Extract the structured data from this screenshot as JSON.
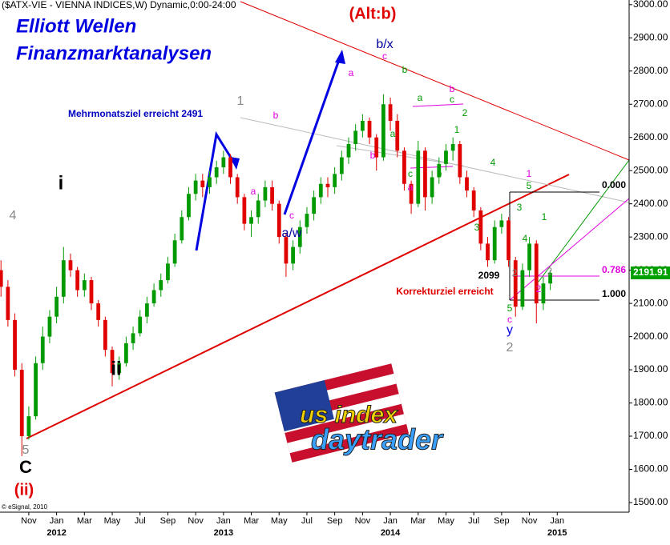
{
  "chart_data": {
    "type": "candlestick",
    "title": "($ATX-VIE - VIENNA INDICES,W) Dynamic,0:00-24:00",
    "credit": "© eSignal, 2010",
    "up_color": "#009a00",
    "down_color": "#e00000",
    "x": [
      -2,
      -1.5,
      -1,
      -0.5,
      0,
      0.5,
      1,
      1.5,
      2,
      2.5,
      3,
      3.5,
      4,
      4.5,
      5,
      5.5,
      6,
      6.5,
      7,
      7.5,
      8,
      8.5,
      9,
      9.5,
      10,
      10.5,
      11,
      11.5,
      12,
      12.5,
      13,
      13.5,
      14,
      14.5,
      15,
      15.5,
      16,
      16.5,
      17,
      17.5,
      18,
      18.5,
      19,
      19.5,
      20,
      20.5,
      21,
      21.5,
      22,
      22.5,
      23,
      23.5,
      24,
      24.5,
      25,
      25.5,
      26,
      26.5,
      27,
      27.5,
      28,
      28.5,
      29,
      29.5,
      30,
      30.5,
      31,
      31.5,
      32,
      32.5,
      33,
      33.5,
      34,
      34.5,
      35,
      35.5,
      36,
      36.5,
      37,
      37.5
    ],
    "open": [
      2200,
      2150,
      2050,
      1900,
      1700,
      1760,
      1920,
      2000,
      2060,
      2120,
      2230,
      2200,
      2140,
      2170,
      2100,
      2050,
      1960,
      1890,
      1920,
      1980,
      2010,
      2060,
      2100,
      2140,
      2170,
      2220,
      2290,
      2360,
      2430,
      2470,
      2450,
      2480,
      2510,
      2540,
      2480,
      2420,
      2340,
      2360,
      2410,
      2450,
      2400,
      2300,
      2220,
      2270,
      2330,
      2370,
      2420,
      2460,
      2450,
      2490,
      2540,
      2580,
      2620,
      2650,
      2600,
      2540,
      2700,
      2650,
      2560,
      2460,
      2400,
      2560,
      2420,
      2480,
      2520,
      2560,
      2580,
      2480,
      2440,
      2380,
      2280,
      2230,
      2330,
      2350,
      2230,
      2090,
      2200,
      2280,
      2100,
      2160
    ],
    "high": [
      2230,
      2170,
      2070,
      1920,
      1790,
      1940,
      2030,
      2080,
      2150,
      2270,
      2250,
      2210,
      2190,
      2180,
      2110,
      2060,
      1970,
      1940,
      2000,
      2030,
      2080,
      2120,
      2160,
      2190,
      2240,
      2310,
      2380,
      2450,
      2490,
      2490,
      2500,
      2530,
      2560,
      2550,
      2490,
      2430,
      2380,
      2430,
      2470,
      2470,
      2410,
      2310,
      2290,
      2350,
      2390,
      2440,
      2480,
      2480,
      2510,
      2560,
      2600,
      2640,
      2670,
      2660,
      2610,
      2730,
      2720,
      2670,
      2570,
      2470,
      2590,
      2570,
      2500,
      2540,
      2580,
      2600,
      2590,
      2500,
      2450,
      2390,
      2300,
      2350,
      2370,
      2360,
      2240,
      2220,
      2300,
      2290,
      2180,
      2200
    ],
    "low": [
      2120,
      2030,
      1880,
      1640,
      1690,
      1750,
      1900,
      1980,
      2040,
      2100,
      2180,
      2120,
      2120,
      2080,
      2030,
      1940,
      1850,
      1870,
      1910,
      1960,
      2000,
      2040,
      2090,
      2120,
      2160,
      2210,
      2280,
      2350,
      2410,
      2420,
      2430,
      2460,
      2490,
      2460,
      2400,
      2320,
      2300,
      2340,
      2390,
      2380,
      2280,
      2180,
      2200,
      2250,
      2310,
      2350,
      2400,
      2420,
      2430,
      2470,
      2520,
      2560,
      2600,
      2580,
      2500,
      2530,
      2620,
      2540,
      2440,
      2370,
      2390,
      2380,
      2400,
      2460,
      2500,
      2530,
      2460,
      2420,
      2360,
      2260,
      2210,
      2220,
      2310,
      2210,
      2060,
      2080,
      2180,
      2040,
      2080,
      2140
    ],
    "close": [
      2150,
      2050,
      1900,
      1700,
      1760,
      1920,
      2000,
      2060,
      2120,
      2230,
      2200,
      2140,
      2170,
      2100,
      2050,
      1960,
      1890,
      1920,
      1980,
      2010,
      2060,
      2100,
      2140,
      2170,
      2220,
      2290,
      2360,
      2430,
      2470,
      2450,
      2480,
      2510,
      2540,
      2480,
      2420,
      2340,
      2360,
      2410,
      2450,
      2400,
      2300,
      2220,
      2270,
      2330,
      2370,
      2420,
      2460,
      2450,
      2490,
      2540,
      2580,
      2620,
      2650,
      2600,
      2540,
      2700,
      2650,
      2560,
      2460,
      2400,
      2560,
      2420,
      2480,
      2520,
      2560,
      2580,
      2480,
      2440,
      2380,
      2280,
      2230,
      2330,
      2350,
      2230,
      2090,
      2200,
      2280,
      2100,
      2160,
      2192
    ],
    "last_value": 2191.91,
    "last_color": "#00a000",
    "xlim": [
      -2.07,
      43.17
    ],
    "xticks": [
      {
        "value": 0,
        "label": "Nov"
      },
      {
        "value": 2,
        "label": "Jan"
      },
      {
        "value": 4,
        "label": "Mar"
      },
      {
        "value": 6,
        "label": "May"
      },
      {
        "value": 8,
        "label": "Jul"
      },
      {
        "value": 10,
        "label": "Sep"
      },
      {
        "value": 12,
        "label": "Nov"
      },
      {
        "value": 14,
        "label": "Jan"
      },
      {
        "value": 16,
        "label": "Mar"
      },
      {
        "value": 18,
        "label": "May"
      },
      {
        "value": 20,
        "label": "Jul"
      },
      {
        "value": 22,
        "label": "Sep"
      },
      {
        "value": 24,
        "label": "Nov"
      },
      {
        "value": 26,
        "label": "Jan"
      },
      {
        "value": 28,
        "label": "Mar"
      },
      {
        "value": 30,
        "label": "May"
      },
      {
        "value": 32,
        "label": "Jul"
      },
      {
        "value": 34,
        "label": "Sep"
      },
      {
        "value": 36,
        "label": "Nov"
      },
      {
        "value": 38,
        "label": "Jan"
      }
    ],
    "year_ticks": [
      {
        "value": 2,
        "label": "2012"
      },
      {
        "value": 14,
        "label": "2013"
      },
      {
        "value": 26,
        "label": "2014"
      },
      {
        "value": 38,
        "label": "2015"
      }
    ],
    "ylim": [
      1471,
      3014
    ],
    "yticks": [
      {
        "value": 1500,
        "label": "1500.00"
      },
      {
        "value": 1600,
        "label": "1600.00"
      },
      {
        "value": 1700,
        "label": "1700.00"
      },
      {
        "value": 1800,
        "label": "1800.00"
      },
      {
        "value": 1900,
        "label": "1900.00"
      },
      {
        "value": 2000,
        "label": "2000.00"
      },
      {
        "value": 2100,
        "label": "2100.00"
      },
      {
        "value": 2200,
        "label": "2200.00"
      },
      {
        "value": 2300,
        "label": "2300.00"
      },
      {
        "value": 2400,
        "label": "2400.00"
      },
      {
        "value": 2500,
        "label": "2500.00"
      },
      {
        "value": 2600,
        "label": "2600.00"
      },
      {
        "value": 2700,
        "label": "2700.00"
      },
      {
        "value": 2800,
        "label": "2800.00"
      },
      {
        "value": 2900,
        "label": "2900.00"
      },
      {
        "value": 3000,
        "label": "3000.00"
      }
    ],
    "annotations": [
      {
        "text": "(Alt:b)",
        "color": "#e00000"
      },
      {
        "text": "Elliott Wellen",
        "color": "#0000e0"
      },
      {
        "text": "Finanzmarktanalysen",
        "color": "#0000e0"
      },
      {
        "text": "Mehrmonatsziel erreicht 2491",
        "color": "#0000c0"
      },
      {
        "text": "b/x",
        "color": "#0000a0"
      },
      {
        "text": "c",
        "color": "#e000e0"
      },
      {
        "text": "b",
        "color": "#009a00"
      },
      {
        "text": "a",
        "color": "#e000e0"
      },
      {
        "text": "1",
        "color": "#888888"
      },
      {
        "text": "b",
        "color": "#e000e0"
      },
      {
        "text": "a",
        "color": "#e000e0"
      },
      {
        "text": "c",
        "color": "#e000e0"
      },
      {
        "text": "a/w",
        "color": "#0000a0"
      },
      {
        "text": "i",
        "color": "#000000"
      },
      {
        "text": "ii",
        "color": "#000000"
      },
      {
        "text": "4",
        "color": "#888888"
      },
      {
        "text": "5",
        "color": "#888888"
      },
      {
        "text": "C",
        "color": "#000000"
      },
      {
        "text": "(ii)",
        "color": "#e00000"
      },
      {
        "text": "b",
        "color": "#e000e0"
      },
      {
        "text": "a",
        "color": "#009a00"
      },
      {
        "text": "a",
        "color": "#009a00"
      },
      {
        "text": "c",
        "color": "#009a00"
      },
      {
        "text": "b",
        "color": "#e000e0"
      },
      {
        "text": "2",
        "color": "#009a00"
      },
      {
        "text": "1",
        "color": "#009a00"
      },
      {
        "text": "a",
        "color": "#e000e0"
      },
      {
        "text": "b",
        "color": "#009a00"
      },
      {
        "text": "c",
        "color": "#009a00"
      },
      {
        "text": "4",
        "color": "#009a00"
      },
      {
        "text": "3",
        "color": "#009a00"
      },
      {
        "text": "1",
        "color": "#e000e0"
      },
      {
        "text": "5",
        "color": "#009a00"
      },
      {
        "text": "3",
        "color": "#009a00"
      },
      {
        "text": "4",
        "color": "#009a00"
      },
      {
        "text": "1",
        "color": "#009a00"
      },
      {
        "text": "2",
        "color": "#888888"
      },
      {
        "text": "2",
        "color": "#888888"
      },
      {
        "text": "2",
        "color": "#e000e0"
      },
      {
        "text": "5",
        "color": "#009a00"
      },
      {
        "text": "c",
        "color": "#e000e0"
      },
      {
        "text": "y",
        "color": "#0000e0"
      },
      {
        "text": "2",
        "color": "#888888"
      },
      {
        "text": "2099",
        "color": "#000000"
      },
      {
        "text": "Korrekturziel erreicht",
        "color": "#e00000"
      },
      {
        "text": "0.000",
        "color": "#000000"
      },
      {
        "text": "0.786",
        "color": "#e000e0"
      },
      {
        "text": "1.000",
        "color": "#000000"
      },
      {
        "text": "us index",
        "color": "#f0d000"
      },
      {
        "text": "daytrader",
        "color": "#3aa0ff"
      }
    ]
  }
}
